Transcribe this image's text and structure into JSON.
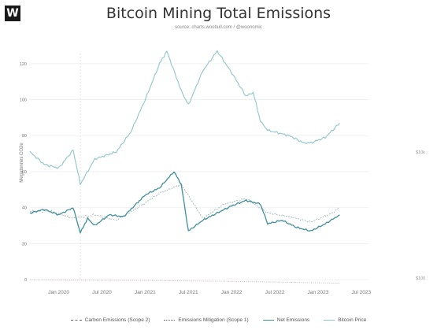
{
  "header": {
    "logo_letter": "W",
    "title": "Bitcoin Mining Total Emissions",
    "subtitle": "source: charts.woobull.com / @woonomic"
  },
  "colors": {
    "net_emissions": "#3f8f9c",
    "bitcoin_price": "#8fc5cb",
    "scope1_mitigation": "#b9a9b4",
    "scope2_carbon": "#7a9aa0",
    "grid": "#eeeeee",
    "axis_text": "#777777"
  },
  "chart_data": {
    "type": "line",
    "title": "Bitcoin Mining Total Emissions",
    "subtitle": "source: charts.woobull.com / @woonomic",
    "ylabel": "Megatonnes CO2e",
    "ylim": [
      0,
      130
    ],
    "y_ticks": [
      "0",
      "20",
      "40",
      "60",
      "80",
      "100",
      "120"
    ],
    "y_tick_values": [
      0,
      20,
      40,
      60,
      80,
      100,
      120
    ],
    "x_ticks": [
      "Jan 2020",
      "Jul 2020",
      "Jan 2021",
      "Jul 2021",
      "Jan 2022",
      "Jul 2022",
      "Jan 2023",
      "Jul 2023"
    ],
    "x_tick_values": [
      "2020-01",
      "2020-07",
      "2021-01",
      "2021-07",
      "2022-01",
      "2022-07",
      "2023-01",
      "2023-07"
    ],
    "xlim": [
      "2019-09",
      "2023-08"
    ],
    "right_axis_labels": [
      "$10k",
      "$100"
    ],
    "grid": true,
    "legend_position": "bottom",
    "series": [
      {
        "name": "Carbon Emissions (Scope 2)",
        "style": "dashed",
        "x": [
          "2019-09",
          "2019-12",
          "2020-03",
          "2020-06",
          "2020-09",
          "2020-12",
          "2021-03",
          "2021-06",
          "2021-09",
          "2021-12",
          "2022-03",
          "2022-06",
          "2022-09",
          "2022-12",
          "2023-03",
          "2023-04"
        ],
        "y": [
          38,
          38,
          34,
          36,
          33,
          40,
          48,
          53,
          34,
          42,
          45,
          37,
          35,
          32,
          37,
          40
        ]
      },
      {
        "name": "Emissions Mitigation (Scope 1)",
        "style": "dotted",
        "x": [
          "2019-09",
          "2020-01",
          "2020-06",
          "2021-01",
          "2021-06",
          "2022-01",
          "2022-06",
          "2023-01",
          "2023-04"
        ],
        "y": [
          0,
          -0.2,
          -0.3,
          -0.5,
          -0.7,
          -1.0,
          -1.3,
          -1.8,
          -2.0
        ]
      },
      {
        "name": "Net Emissions",
        "style": "solid",
        "x": [
          "2019-09",
          "2019-11",
          "2020-01",
          "2020-03",
          "2020-04",
          "2020-05",
          "2020-06",
          "2020-08",
          "2020-10",
          "2020-12",
          "2021-01",
          "2021-03",
          "2021-05",
          "2021-06",
          "2021-07",
          "2021-09",
          "2021-11",
          "2022-01",
          "2022-03",
          "2022-05",
          "2022-06",
          "2022-08",
          "2022-10",
          "2022-12",
          "2023-02",
          "2023-04"
        ],
        "y": [
          37,
          39,
          36,
          40,
          26,
          34,
          30,
          36,
          35,
          43,
          47,
          51,
          60,
          53,
          27,
          33,
          37,
          41,
          44,
          42,
          31,
          33,
          29,
          27,
          31,
          36
        ]
      },
      {
        "name": "Bitcoin Price",
        "style": "solid",
        "x": [
          "2019-09",
          "2019-11",
          "2020-01",
          "2020-03",
          "2020-04",
          "2020-06",
          "2020-09",
          "2020-11",
          "2021-01",
          "2021-03",
          "2021-04",
          "2021-06",
          "2021-07",
          "2021-09",
          "2021-11",
          "2022-01",
          "2022-03",
          "2022-04",
          "2022-05",
          "2022-06",
          "2022-09",
          "2022-11",
          "2022-12",
          "2023-02",
          "2023-04"
        ],
        "y": [
          71,
          64,
          62,
          72,
          53,
          67,
          71,
          82,
          100,
          120,
          127,
          105,
          97,
          116,
          127,
          115,
          102,
          104,
          88,
          83,
          80,
          76,
          76,
          79,
          87
        ]
      }
    ]
  }
}
